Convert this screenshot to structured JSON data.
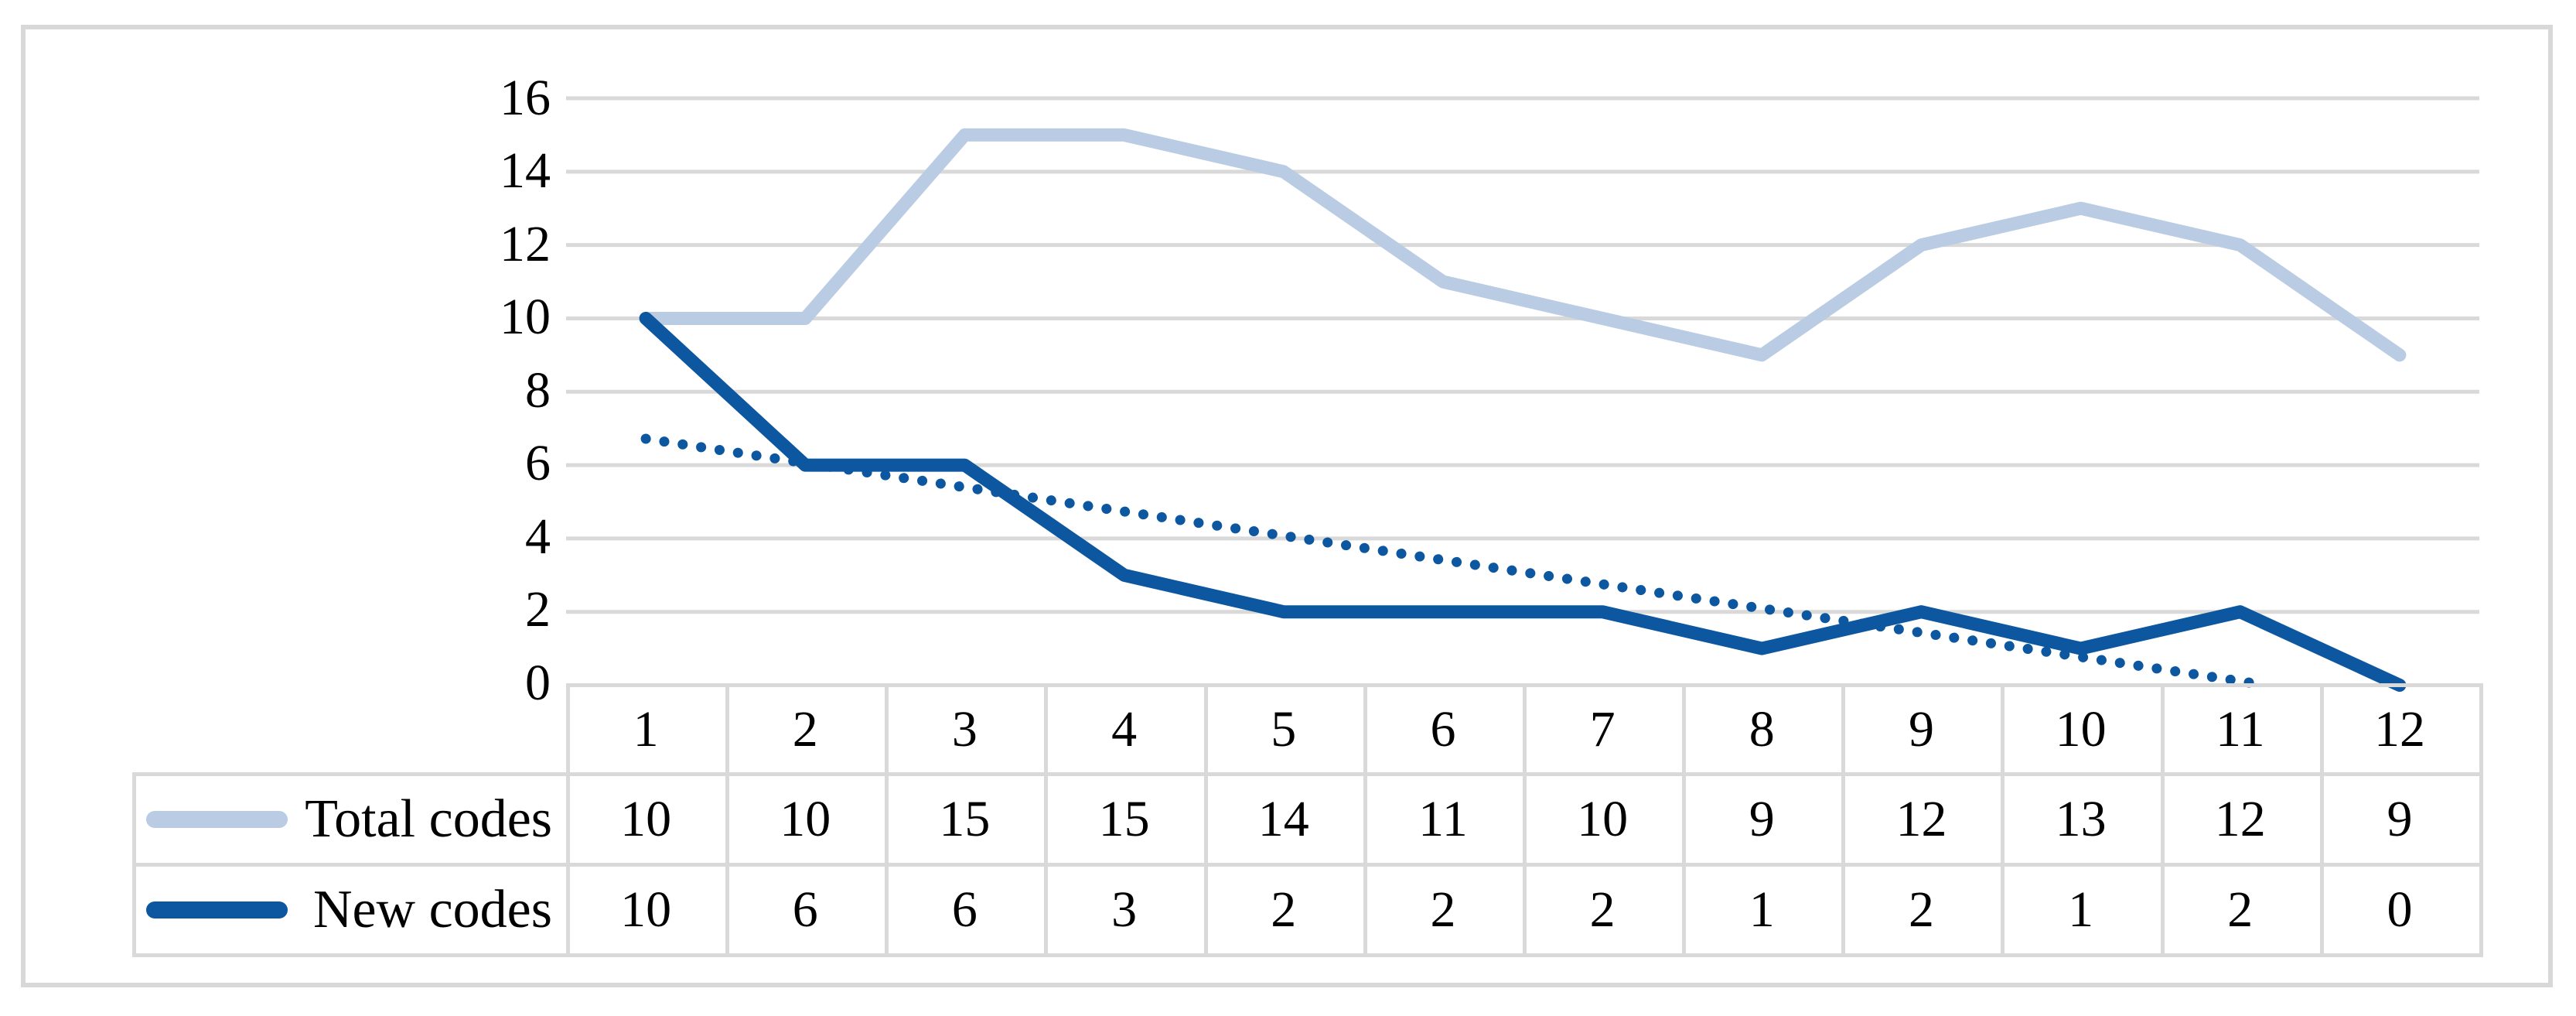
{
  "chart_data": {
    "type": "line",
    "title": "",
    "categories": [
      "1",
      "2",
      "3",
      "4",
      "5",
      "6",
      "7",
      "8",
      "9",
      "10",
      "11",
      "12"
    ],
    "series": [
      {
        "name": "Total codes",
        "values": [
          10,
          10,
          15,
          15,
          14,
          11,
          10,
          9,
          12,
          13,
          12,
          9
        ],
        "color": "#b9cce4",
        "line_style": "solid"
      },
      {
        "name": "New codes",
        "values": [
          10,
          6,
          6,
          3,
          2,
          2,
          2,
          1,
          2,
          1,
          2,
          0
        ],
        "color": "#0c57a0",
        "line_style": "solid"
      }
    ],
    "trendline": {
      "of_series": "New codes",
      "kind": "linear",
      "color": "#0c57a0",
      "line_style": "dotted"
    },
    "ylim": [
      0,
      16
    ],
    "ytick_step": 2,
    "y_ticks_top_to_bottom": [
      "16",
      "14",
      "12",
      "10",
      "8",
      "6",
      "4",
      "2",
      "0"
    ],
    "grid": true,
    "legend_position": "data-table-rows",
    "data_table": true
  },
  "colors": {
    "grid": "#d9d9d9",
    "table_border": "#d9d9d9",
    "outer_frame": "#d8d8d8",
    "text": "#000000",
    "total_codes": "#b9cce4",
    "new_codes": "#0c57a0",
    "background": "#ffffff"
  }
}
